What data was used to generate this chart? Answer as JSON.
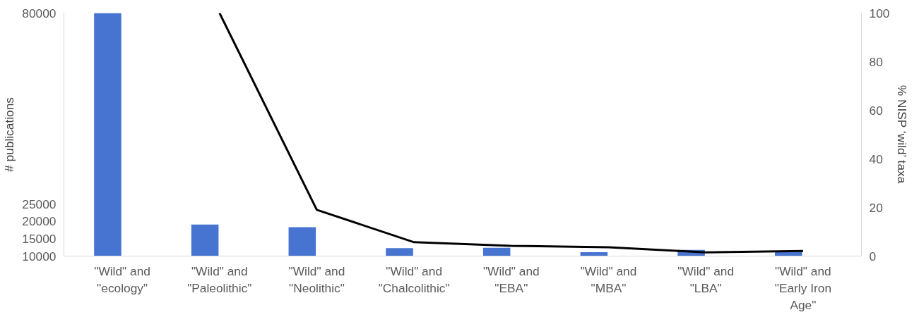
{
  "chart_data": {
    "type": "bar",
    "ylabel": "# publications",
    "y2label": "% NISP ‘wild’ taxa",
    "categories": [
      "\"Wild\" and \"ecology\"",
      "\"Wild\" and \"Paleolithic\"",
      "\"Wild\" and \"Neolithic\"",
      "\"Wild\" and \"Chalcolithic\"",
      "\"Wild\" and \"EBA\"",
      "\"Wild\" and \"MBA\"",
      "\"Wild\" and \"LBA\"",
      "\"Wild\" and \"Early Iron Age\""
    ],
    "series": [
      {
        "color": "#4674d0",
        "values": [
          80000,
          19100,
          18300,
          12300,
          12400,
          11100,
          11800,
          11300
        ]
      },
      {
        "type": "line",
        "axis": "y2",
        "color": "#000000",
        "values": [
          null,
          100,
          19,
          5.7,
          4.2,
          3.6,
          1.5,
          2.1
        ]
      }
    ],
    "ylim": [
      10000,
      80000
    ],
    "yticks": [
      10000,
      15000,
      20000,
      25000,
      80000
    ],
    "y2lim": [
      0,
      100
    ],
    "y2ticks": [
      0,
      20,
      40,
      60,
      80,
      100
    ],
    "grid": false,
    "marker": "none",
    "line_style": "solid"
  }
}
